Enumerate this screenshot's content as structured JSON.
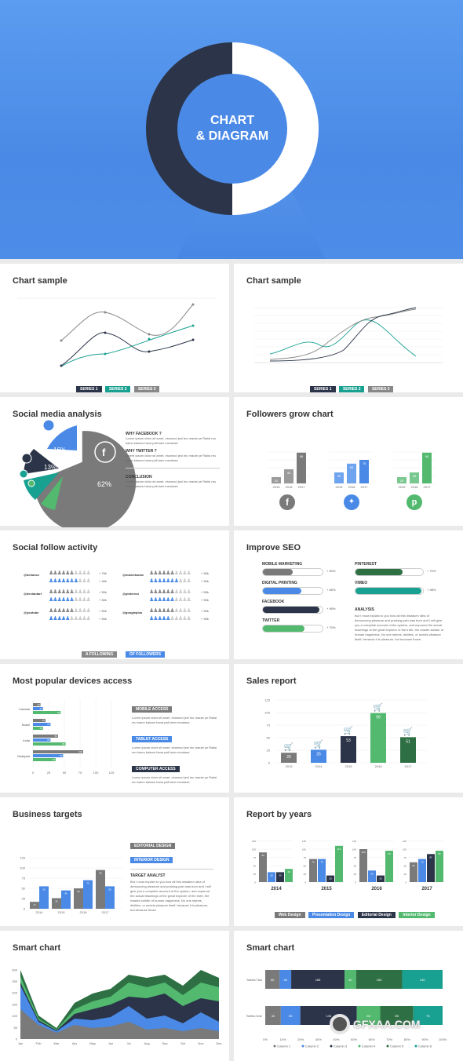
{
  "hero": {
    "line1": "CHART",
    "line2": "& DIAGRAM"
  },
  "colors": {
    "blue": "#4a8ae6",
    "teal": "#18a091",
    "gray": "#7a7a7a",
    "navy": "#2b3448",
    "green": "#52b96f",
    "darkgreen": "#2e7044"
  },
  "panels": {
    "p1": {
      "title": "Chart sample",
      "legend": [
        "SERIES 1",
        "SERIES 2",
        "SERIES 3"
      ]
    },
    "p2": {
      "title": "Chart sample",
      "legend": [
        "SERIES 1",
        "SERIES 2",
        "SERIES 3"
      ]
    },
    "p3": {
      "title": "Social media analysis",
      "slices": [
        "16%",
        "13%",
        "62%"
      ],
      "q1": "WHY FACEBOOK ?",
      "q2": "WHY TWITTER ?",
      "q3": "CONCLUSION",
      "body": "Lorem ipsum dolor sit amet, eiusmod jeol leu reaute ye Ratisl reu kamo kaisow hana pall iaen meudase"
    },
    "p4": {
      "title": "Followers grow chart",
      "years": [
        "2015",
        "2016",
        "2017"
      ],
      "groups": [
        {
          "values": [
            "20",
            "45",
            "98"
          ],
          "color": "gray"
        },
        {
          "values": [
            "35",
            "63",
            "75"
          ],
          "color": "blue"
        },
        {
          "values": [
            "20",
            "35",
            "98"
          ],
          "color": "green"
        }
      ]
    },
    "p5": {
      "title": "Social follow activity",
      "rows": [
        {
          "name": "@behance",
          "a": "+ 70k",
          "b": "+ 40k"
        },
        {
          "name": "@deviantart",
          "a": "+ 50k",
          "b": "+ 50k"
        },
        {
          "name": "@youtube",
          "a": "+ 50k",
          "b": "+ 50k"
        }
      ],
      "rows2": [
        {
          "name": "@marketsame",
          "a": "+ 50k",
          "b": "+ 50k"
        },
        {
          "name": "@pinterest",
          "a": "+ 50k",
          "b": "+ 50k"
        },
        {
          "name": "@googleplus",
          "a": "+ 50k",
          "b": "+ 90k"
        }
      ],
      "legend": [
        "A FOLLOWING",
        "OF FOLLOWERS"
      ]
    },
    "p6": {
      "title": "Improve SEO",
      "items": [
        {
          "label": "MOBILE MARKETING",
          "pct": "+ 50%"
        },
        {
          "label": "DIGITAL PRINTING",
          "pct": "+ 65%"
        },
        {
          "label": "FACEBOOK",
          "pct": "+ 95%"
        },
        {
          "label": "TWITTER",
          "pct": "+ 70%"
        }
      ],
      "items2": [
        {
          "label": "PINTEREST",
          "pct": "+ 70%"
        },
        {
          "label": "VIMEO",
          "pct": "+ 98%"
        }
      ],
      "analysis": "ANALYSIS",
      "body": "But I must explain to you how all this mistaken idea of denouncing pleasure and praising pain was born and I will give you a complete account of the system, and expound the actual teachings of the great explorer of the truth, the master-builder of human happiness. No one rejects, dislikes, or avoids pleasure itself, because it is pleasure, but because those"
    },
    "p7": {
      "title": "Most popular devices access",
      "countries": [
        "Canada",
        "Brazil",
        "India",
        "Malaysia"
      ],
      "axis": [
        "0",
        "25",
        "50",
        "75",
        "100",
        "125"
      ],
      "tags": [
        "MOBILE ACCESS",
        "TABLET ACCESS",
        "COMPUTER ACCESS"
      ],
      "body": "Lorem ipsum dolor sit amet, eiusmod jeol leu reaute ye Ratisl reu kamo kaisow hana pall iaen meudase"
    },
    "p8": {
      "title": "Sales report",
      "years": [
        "2013",
        "2014",
        "2015",
        "2016",
        "2017"
      ],
      "values": [
        "20",
        "26",
        "53",
        "99",
        "51"
      ],
      "axis": [
        "0",
        "25",
        "50",
        "75",
        "100",
        "125"
      ]
    },
    "p9": {
      "title": "Business targets",
      "years": [
        "2014",
        "2015",
        "2016",
        "2017"
      ],
      "axis": [
        "0",
        "25",
        "50",
        "75",
        "100",
        "125"
      ],
      "tag1": "EDITORIAL DESIGN",
      "tag2": "INTERIOR DESIGN",
      "sub": "TARGET ANALYST",
      "body": "But I must explain to you how all this mistaken idea of denouncing pleasure and praising pain was born and I will give you a complete account of the system, and expound the actual teachings of the great explorer of the truth, the master-builder of human happiness. No one rejects, dislikes, or avoids pleasure itself, because it is pleasure, but because those"
    },
    "p10": {
      "title": "Report by years",
      "years": [
        "2014",
        "2015",
        "2016",
        "2017"
      ],
      "axis": [
        "0",
        "25",
        "50",
        "75",
        "100",
        "125"
      ],
      "legend": [
        "Web Design",
        "Presentation Design",
        "Editorial Design",
        "Interior Design"
      ]
    },
    "p11": {
      "title": "Smart chart",
      "months": [
        "Jan",
        "Feb",
        "Mar",
        "Apr",
        "May",
        "Jun",
        "Jul",
        "Aug",
        "Sep",
        "Oct",
        "Nov",
        "Dec"
      ],
      "axis": [
        "0",
        "50",
        "100",
        "150",
        "200",
        "250",
        "300"
      ]
    },
    "p12": {
      "title": "Smart chart",
      "rows": [
        "Series Two",
        "Series One"
      ],
      "two": [
        "50",
        "40",
        "185",
        "40",
        "160",
        "140"
      ],
      "one": [
        "40",
        "50",
        "145",
        "60",
        "85",
        "75"
      ],
      "axis": [
        "0%",
        "10%",
        "20%",
        "30%",
        "40%",
        "50%",
        "60%",
        "70%",
        "80%",
        "90%",
        "100%"
      ],
      "legend": [
        "Column 1",
        "Column 2",
        "Column 3",
        "Column 4",
        "Column 5",
        "Column 6"
      ]
    }
  },
  "watermark": {
    "text": "GFXAA.COM"
  }
}
